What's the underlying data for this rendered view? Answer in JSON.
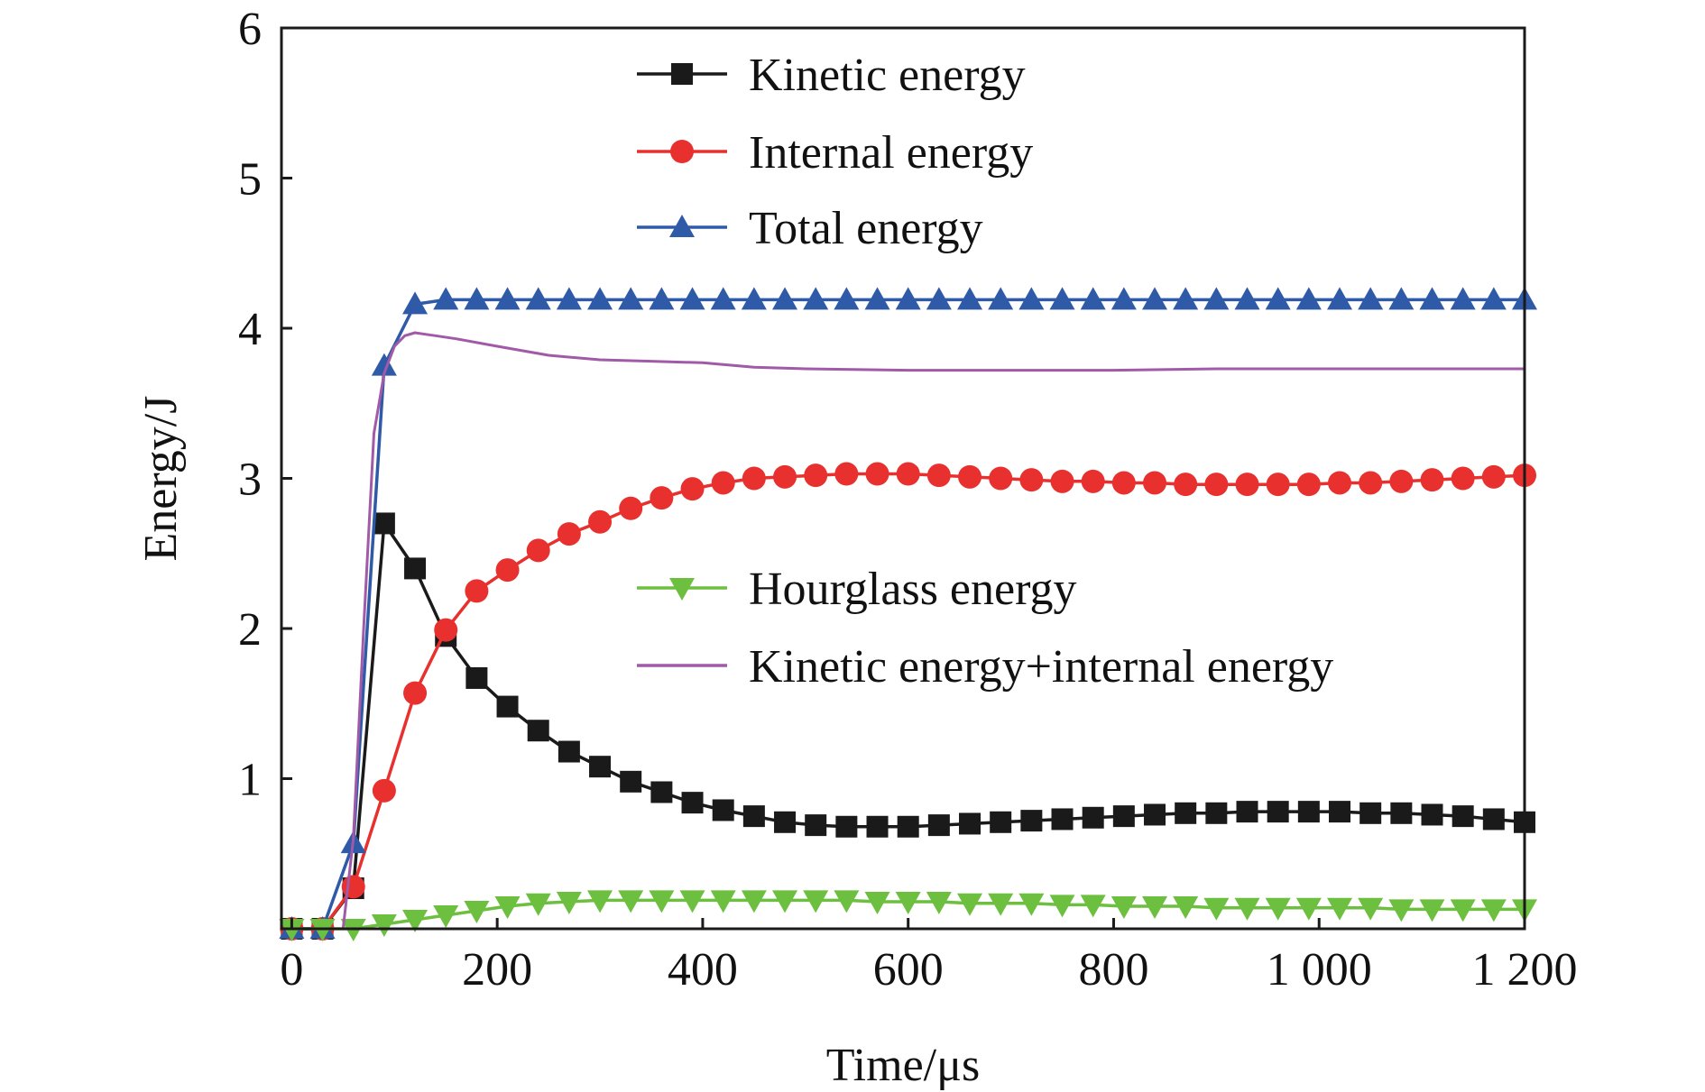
{
  "chart_data": {
    "type": "line",
    "xlabel": "Time/μs",
    "ylabel": "Energy/J",
    "xlim": [
      -10,
      1200
    ],
    "ylim": [
      0,
      6
    ],
    "grid": false,
    "x_ticks": [
      {
        "value": 0,
        "label": "0"
      },
      {
        "value": 200,
        "label": "200"
      },
      {
        "value": 400,
        "label": "400"
      },
      {
        "value": 600,
        "label": "600"
      },
      {
        "value": 800,
        "label": "800"
      },
      {
        "value": 1000,
        "label": "1 000"
      },
      {
        "value": 1200,
        "label": "1 200"
      }
    ],
    "y_ticks": [
      {
        "value": 1,
        "label": "1"
      },
      {
        "value": 2,
        "label": "2"
      },
      {
        "value": 3,
        "label": "3"
      },
      {
        "value": 4,
        "label": "4"
      },
      {
        "value": 5,
        "label": "5"
      },
      {
        "value": 6,
        "label": "6"
      }
    ],
    "x_marker": [
      0,
      30,
      60,
      90,
      120,
      150,
      180,
      210,
      240,
      270,
      300,
      330,
      360,
      390,
      420,
      450,
      480,
      510,
      540,
      570,
      600,
      630,
      660,
      690,
      720,
      750,
      780,
      810,
      840,
      870,
      900,
      930,
      960,
      990,
      1020,
      1050,
      1080,
      1110,
      1140,
      1170,
      1200
    ],
    "series": [
      {
        "name": "Kinetic energy",
        "color": "#1a1a1a",
        "marker": "square",
        "values": [
          0,
          0,
          0.27,
          2.7,
          2.4,
          1.95,
          1.67,
          1.48,
          1.32,
          1.18,
          1.08,
          0.98,
          0.91,
          0.84,
          0.79,
          0.75,
          0.71,
          0.69,
          0.68,
          0.68,
          0.68,
          0.69,
          0.7,
          0.71,
          0.72,
          0.73,
          0.74,
          0.75,
          0.76,
          0.77,
          0.77,
          0.78,
          0.78,
          0.78,
          0.78,
          0.77,
          0.77,
          0.76,
          0.75,
          0.73,
          0.71
        ]
      },
      {
        "name": "Internal energy",
        "color": "#e8302e",
        "marker": "circle",
        "values": [
          0,
          0,
          0.28,
          0.92,
          1.57,
          1.99,
          2.25,
          2.39,
          2.52,
          2.63,
          2.71,
          2.8,
          2.87,
          2.93,
          2.97,
          3.0,
          3.01,
          3.02,
          3.03,
          3.03,
          3.03,
          3.02,
          3.01,
          3.0,
          2.99,
          2.98,
          2.98,
          2.97,
          2.97,
          2.96,
          2.96,
          2.96,
          2.96,
          2.96,
          2.97,
          2.97,
          2.98,
          2.99,
          3.0,
          3.01,
          3.02
        ]
      },
      {
        "name": "Total energy",
        "color": "#2e5aa8",
        "marker": "triangle-up",
        "values": [
          0,
          0,
          0.57,
          3.75,
          4.16,
          4.19,
          4.19,
          4.19,
          4.19,
          4.19,
          4.19,
          4.19,
          4.19,
          4.19,
          4.19,
          4.19,
          4.19,
          4.19,
          4.19,
          4.19,
          4.19,
          4.19,
          4.19,
          4.19,
          4.19,
          4.19,
          4.19,
          4.19,
          4.19,
          4.19,
          4.19,
          4.19,
          4.19,
          4.19,
          4.19,
          4.19,
          4.19,
          4.19,
          4.19,
          4.19,
          4.19
        ]
      },
      {
        "name": "Hourglass energy",
        "color": "#6cbf3f",
        "marker": "triangle-down",
        "values": [
          0,
          0,
          0,
          0.03,
          0.06,
          0.09,
          0.12,
          0.15,
          0.17,
          0.18,
          0.19,
          0.19,
          0.19,
          0.19,
          0.19,
          0.19,
          0.19,
          0.19,
          0.19,
          0.18,
          0.18,
          0.18,
          0.17,
          0.17,
          0.17,
          0.16,
          0.16,
          0.15,
          0.15,
          0.15,
          0.14,
          0.14,
          0.14,
          0.14,
          0.14,
          0.14,
          0.13,
          0.13,
          0.13,
          0.13,
          0.13
        ]
      },
      {
        "name": "Kinetic energy+internal energy",
        "color": "#a05aa8",
        "marker": "none",
        "x": [
          0,
          30,
          50,
          60,
          70,
          80,
          90,
          100,
          110,
          120,
          130,
          140,
          160,
          200,
          250,
          300,
          350,
          400,
          450,
          500,
          600,
          700,
          800,
          900,
          1000,
          1100,
          1200
        ],
        "values": [
          0,
          0,
          0,
          0.6,
          2.0,
          3.3,
          3.7,
          3.88,
          3.95,
          3.97,
          3.96,
          3.95,
          3.93,
          3.88,
          3.82,
          3.79,
          3.78,
          3.77,
          3.74,
          3.73,
          3.72,
          3.72,
          3.72,
          3.73,
          3.73,
          3.73,
          3.73
        ]
      }
    ],
    "legend": [
      {
        "label": "Kinetic energy",
        "series": 0,
        "group": "upper"
      },
      {
        "label": "Internal energy",
        "series": 1,
        "group": "upper"
      },
      {
        "label": "Total energy",
        "series": 2,
        "group": "upper"
      },
      {
        "label": "Hourglass energy",
        "series": 3,
        "group": "middle"
      },
      {
        "label": "Kinetic energy+internal energy",
        "series": 4,
        "group": "middle"
      }
    ]
  }
}
